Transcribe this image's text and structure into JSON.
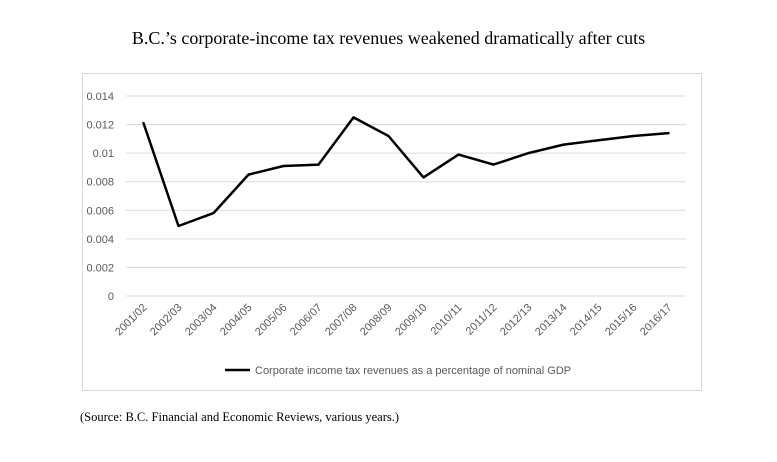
{
  "title": "B.C.’s corporate-income tax revenues weakened dramatically after cuts",
  "source": "(Source: B.C. Financial and Economic Reviews, various years.)",
  "colors": {
    "line": "#000000",
    "grid": "#d9d9d9",
    "tick": "#595959"
  },
  "chart_data": {
    "type": "line",
    "categories": [
      "2001/02",
      "2002/03",
      "2003/04",
      "2004/05",
      "2005/06",
      "2006/07",
      "2007/08",
      "2008/09",
      "2009/10",
      "2010/11",
      "2011/12",
      "2012/13",
      "2013/14",
      "2014/15",
      "2015/16",
      "2016/17"
    ],
    "series": [
      {
        "name": "Corporate income tax revenues as a percentage of nominal GDP",
        "values": [
          0.0121,
          0.0049,
          0.0058,
          0.0085,
          0.0091,
          0.0092,
          0.0125,
          0.0112,
          0.0083,
          0.0099,
          0.0092,
          0.01,
          0.0106,
          0.0109,
          0.0112,
          0.0114
        ]
      }
    ],
    "yticks": [
      "0.014",
      "0.012",
      "0.01",
      "0.008",
      "0.006",
      "0.004",
      "0.002",
      "0"
    ],
    "ylim": [
      0,
      0.014
    ],
    "grid": true,
    "legend_position": "bottom"
  }
}
